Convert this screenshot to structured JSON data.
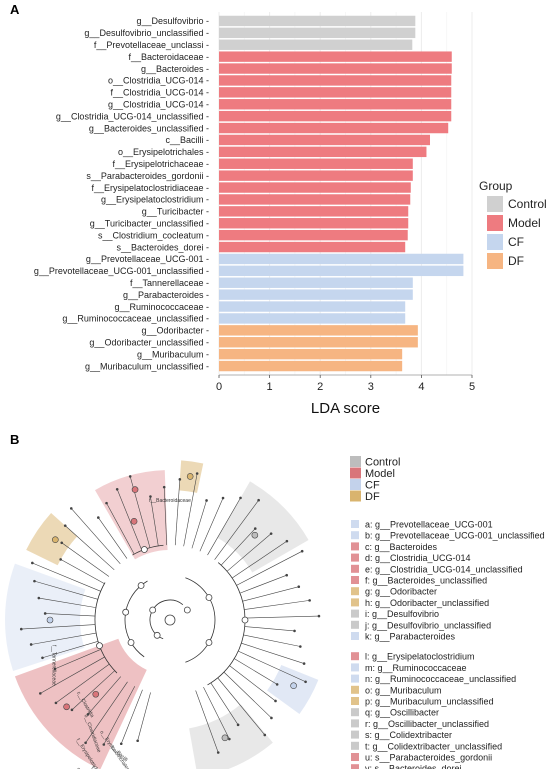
{
  "panels": {
    "a_label": "A",
    "b_label": "B"
  },
  "chart_data": [
    {
      "type": "bar",
      "orientation": "horizontal",
      "xlabel": "LDA score",
      "xlim": [
        0,
        5
      ],
      "xticks": [
        "0",
        "1",
        "2",
        "3",
        "4",
        "5"
      ],
      "grid": true,
      "legend": {
        "title": "Group",
        "position": "right",
        "entries": [
          {
            "name": "Control",
            "color": "#d0d0d0"
          },
          {
            "name": "Model",
            "color": "#ee7b80"
          },
          {
            "name": "CF",
            "color": "#c5d6ee"
          },
          {
            "name": "DF",
            "color": "#f6b582"
          }
        ]
      },
      "bars": [
        {
          "label": "g__Desulfovibrio",
          "value": 3.88,
          "group": "Control"
        },
        {
          "label": "g__Desulfovibrio_unclassified",
          "value": 3.88,
          "group": "Control"
        },
        {
          "label": "f__Prevotellaceae_unclassi",
          "value": 3.82,
          "group": "Control"
        },
        {
          "label": "f__Bacteroidaceae",
          "value": 4.6,
          "group": "Model"
        },
        {
          "label": "g__Bacteroides",
          "value": 4.6,
          "group": "Model"
        },
        {
          "label": "o__Clostridia_UCG-014",
          "value": 4.59,
          "group": "Model"
        },
        {
          "label": "f__Clostridia_UCG-014",
          "value": 4.59,
          "group": "Model"
        },
        {
          "label": "g__Clostridia_UCG-014",
          "value": 4.59,
          "group": "Model"
        },
        {
          "label": "g__Clostridia_UCG-014_unclassified",
          "value": 4.59,
          "group": "Model"
        },
        {
          "label": "g__Bacteroides_unclassified",
          "value": 4.53,
          "group": "Model"
        },
        {
          "label": "c__Bacilli",
          "value": 4.17,
          "group": "Model"
        },
        {
          "label": "o__Erysipelotrichales",
          "value": 4.1,
          "group": "Model"
        },
        {
          "label": "f__Erysipelotrichaceae",
          "value": 3.83,
          "group": "Model"
        },
        {
          "label": "s__Parabacteroides_gordonii",
          "value": 3.83,
          "group": "Model"
        },
        {
          "label": "f__Erysipelatoclostridiaceae",
          "value": 3.79,
          "group": "Model"
        },
        {
          "label": "g__Erysipelatoclostridium",
          "value": 3.78,
          "group": "Model"
        },
        {
          "label": "g__Turicibacter",
          "value": 3.74,
          "group": "Model"
        },
        {
          "label": "g__Turicibacter_unclassified",
          "value": 3.74,
          "group": "Model"
        },
        {
          "label": "s__Clostridium_cocleatum",
          "value": 3.73,
          "group": "Model"
        },
        {
          "label": "s__Bacteroides_dorei",
          "value": 3.68,
          "group": "Model"
        },
        {
          "label": "g__Prevotellaceae_UCG-001",
          "value": 4.83,
          "group": "CF"
        },
        {
          "label": "g__Prevotellaceae_UCG-001_unclassified",
          "value": 4.83,
          "group": "CF"
        },
        {
          "label": "f__Tannerellaceae",
          "value": 3.83,
          "group": "CF"
        },
        {
          "label": "g__Parabacteroides",
          "value": 3.83,
          "group": "CF"
        },
        {
          "label": "g__Ruminococcaceae",
          "value": 3.68,
          "group": "CF"
        },
        {
          "label": "g__Ruminococcaceae_unclassified",
          "value": 3.68,
          "group": "CF"
        },
        {
          "label": "g__Odoribacter",
          "value": 3.93,
          "group": "DF"
        },
        {
          "label": "g__Odoribacter_unclassified",
          "value": 3.93,
          "group": "DF"
        },
        {
          "label": "g__Muribaculum",
          "value": 3.62,
          "group": "DF"
        },
        {
          "label": "g__Muribaculum_unclassified",
          "value": 3.62,
          "group": "DF"
        }
      ]
    },
    {
      "type": "cladogram",
      "legend": {
        "groups": [
          {
            "name": "Control",
            "color": "#bdbdbd"
          },
          {
            "name": "Model",
            "color": "#d9757a"
          },
          {
            "name": "CF",
            "color": "#c3d2eb"
          },
          {
            "name": "DF",
            "color": "#d9b46e"
          }
        ],
        "taxa": [
          {
            "key": "a: g__Prevotellaceae_UCG-001",
            "group": "CF"
          },
          {
            "key": "b: g__Prevotellaceae_UCG-001_unclassified",
            "group": "CF"
          },
          {
            "key": "c: g__Bacteroides",
            "group": "Model"
          },
          {
            "key": "d: g__Clostridia_UCG-014",
            "group": "Model"
          },
          {
            "key": "e: g__Clostridia_UCG-014_unclassified",
            "group": "Model"
          },
          {
            "key": "f: g__Bacteroides_unclassified",
            "group": "Model"
          },
          {
            "key": "g: g__Odoribacter",
            "group": "DF"
          },
          {
            "key": "h: g__Odoribacter_unclassified",
            "group": "DF"
          },
          {
            "key": "i: g__Desulfovibrio",
            "group": "Control"
          },
          {
            "key": "j: g__Desulfovibrio_unclassified",
            "group": "Control"
          },
          {
            "key": "k: g__Parabacteroides",
            "group": "CF"
          },
          {
            "key": "l: g__Erysipelatoclostridium",
            "group": "Model"
          },
          {
            "key": "m: g__Ruminococcaceae",
            "group": "CF"
          },
          {
            "key": "n: g__Ruminococcaceae_unclassified",
            "group": "CF"
          },
          {
            "key": "o: g__Muribaculum",
            "group": "DF"
          },
          {
            "key": "p: g__Muribaculum_unclassified",
            "group": "DF"
          },
          {
            "key": "q: g__Oscillibacter",
            "group": "Control"
          },
          {
            "key": "r: g__Oscillibacter_unclassified",
            "group": "Control"
          },
          {
            "key": "s: g__Colidextribacter",
            "group": "Control"
          },
          {
            "key": "t: g__Colidextribacter_unclassified",
            "group": "Control"
          },
          {
            "key": "u: s__Parabacteroides_gordonii",
            "group": "Model"
          },
          {
            "key": "v: s__Bacteroides_dorei",
            "group": "Model"
          }
        ]
      },
      "clade_labels": [
        "f__Bacteroidaceae",
        "c__Clostridia",
        "o__Clostridiaceae",
        "f__Tannerellaceae",
        "c__Bacilli",
        "o__Erysipelotrichales",
        "f__Erysipelotrichaceae",
        "f__Clostridia_UCG-014",
        "o__Clostridia_UCG-014"
      ]
    }
  ]
}
